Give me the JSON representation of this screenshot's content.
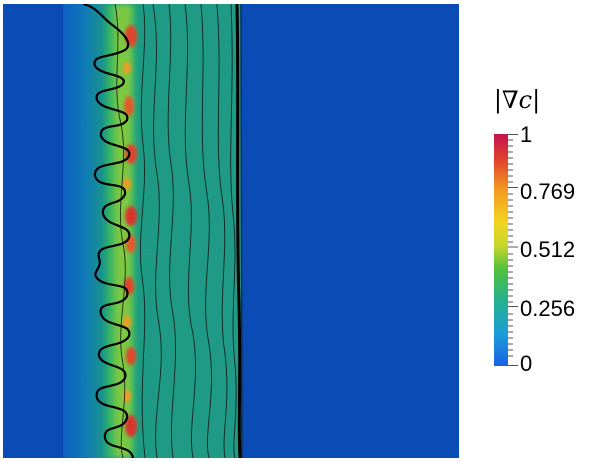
{
  "colors": {
    "background_field": "#0b4bb5",
    "interface_fill": "#1e9a86",
    "contour": "#000000",
    "colormap": [
      "#1a5fe6",
      "#1a9fd8",
      "#22b08e",
      "#53c23c",
      "#c8d62a",
      "#f3d320",
      "#f29a22",
      "#e2472d",
      "#c4134e"
    ]
  },
  "legend": {
    "title": "|∇c|",
    "max_label": "1",
    "label_1": "0.769",
    "label_2": "0.512",
    "label_3": "0.256",
    "min_label": "0"
  }
}
